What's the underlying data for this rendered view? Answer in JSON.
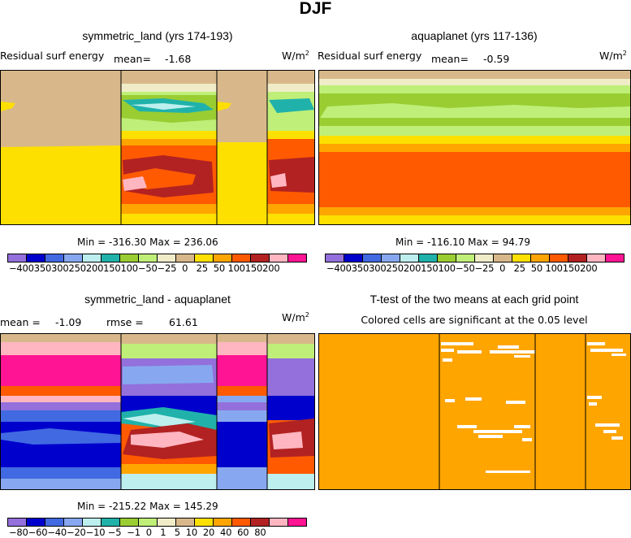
{
  "figure": {
    "title": "DJF"
  },
  "colors": {
    "brown": "#d8b88a",
    "yellow": "#fde000",
    "cream": "#f0ecc7",
    "lightgreen": "#bfef78",
    "green": "#9acd32",
    "teal": "#20b2aa",
    "cyan": "#bdefef",
    "red": "#ff5a00",
    "orangered": "#ff4500",
    "darkred": "#b22222",
    "pink": "#ffb6c1",
    "magenta": "#ff1493",
    "purple": "#9370db",
    "blue": "#0000cd",
    "mblue": "#4169e1",
    "lblue": "#87a8f0",
    "orange": "#ffa500",
    "white": "#ffffff"
  },
  "chart_data": [
    {
      "type": "heatmap",
      "panel": "top-left",
      "title": "symmetric_land (yrs 174-193)",
      "variable": "Residual surf energy",
      "mean_label": "mean=",
      "mean_value": "-1.68",
      "units": "W/m",
      "units_sup": "2",
      "min_label": "Min =",
      "min_value": "-316.30",
      "max_label": "Max =",
      "max_value": "236.06",
      "colorbar_levels": [
        "-400",
        "-350",
        "-300",
        "-250",
        "-200",
        "-150",
        "-100",
        "-50",
        "-25",
        "0",
        "25",
        "50",
        "100",
        "150",
        "200"
      ],
      "colorbar_text": "−400350300250200150100−50−25  0   25  50 100150200"
    },
    {
      "type": "heatmap",
      "panel": "top-right",
      "title": "aquaplanet (yrs 117-136)",
      "variable": "Residual surf energy",
      "mean_label": "mean=",
      "mean_value": "-0.59",
      "units": "W/m",
      "units_sup": "2",
      "min_label": "Min =",
      "min_value": "-116.10",
      "max_label": "Max =",
      "max_value": "94.79",
      "colorbar_levels": [
        "-400",
        "-350",
        "-300",
        "-250",
        "-200",
        "-150",
        "-100",
        "-50",
        "-25",
        "0",
        "25",
        "50",
        "100",
        "150",
        "200"
      ],
      "colorbar_text": "−400350300250200150100−50−25  0   25  50 100150200"
    },
    {
      "type": "heatmap",
      "panel": "bottom-left",
      "title": "symmetric_land - aquaplanet",
      "mean_label": "mean =",
      "mean_value": "-1.09",
      "rmse_label": "rmse =",
      "rmse_value": "61.61",
      "units": "W/m",
      "units_sup": "2",
      "min_label": "Min =",
      "min_value": "-215.22",
      "max_label": "Max =",
      "max_value": "145.29",
      "colorbar_levels": [
        "-80",
        "-60",
        "-40",
        "-20",
        "-10",
        "-5",
        "-1",
        "0",
        "1",
        "5",
        "10",
        "20",
        "40",
        "60",
        "80"
      ],
      "colorbar_text": "−80−60−40−20−10 −5  −1  0   1   5  10  20  40  60  80"
    },
    {
      "type": "heatmap",
      "panel": "bottom-right",
      "title": "T-test of the two means at each grid point",
      "subtitle": "Colored cells are significant at the 0.05 level"
    }
  ]
}
